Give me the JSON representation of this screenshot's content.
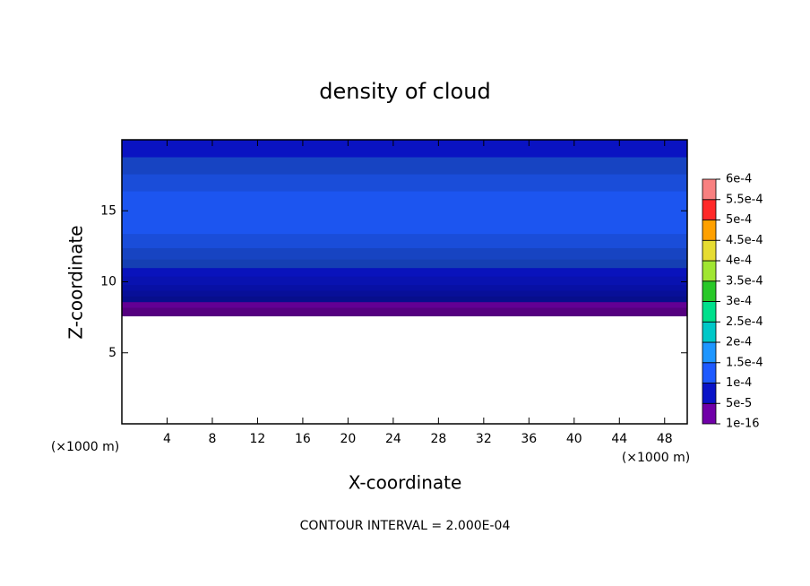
{
  "chart_data": {
    "type": "contour",
    "title": "density of cloud",
    "x_label": "X-coordinate",
    "y_label": "Z-coordinate",
    "x_unit": "(×1000 m)",
    "annotation": "CONTOUR INTERVAL = 2.000E-04",
    "xlim": [
      0,
      50
    ],
    "ylim": [
      0,
      20
    ],
    "xticks": [
      4,
      8,
      12,
      16,
      20,
      24,
      28,
      32,
      36,
      40,
      44,
      48
    ],
    "yticks": [
      5,
      10,
      15
    ],
    "z_edges": [
      7.6,
      8.2,
      8.6,
      9.0,
      9.4,
      9.8,
      10.4,
      11,
      11.6,
      12.4,
      13.4,
      16.4,
      17.6,
      18.8,
      20
    ],
    "values": [
      1e-05,
      3e-05,
      5e-05,
      6e-05,
      7e-05,
      8e-05,
      9e-05,
      0.0001,
      0.00011,
      0.000125,
      0.00014,
      0.000125,
      0.00011,
      9.5e-05
    ],
    "colorbar": {
      "levels": [
        {
          "value": 1e-16,
          "label": "1e-16"
        },
        {
          "value": 5e-05,
          "label": "5e-5"
        },
        {
          "value": 0.0001,
          "label": "1e-4"
        },
        {
          "value": 0.00015,
          "label": "1.5e-4"
        },
        {
          "value": 0.0002,
          "label": "2e-4"
        },
        {
          "value": 0.00025,
          "label": "2.5e-4"
        },
        {
          "value": 0.0003,
          "label": "3e-4"
        },
        {
          "value": 0.00035,
          "label": "3.5e-4"
        },
        {
          "value": 0.0004,
          "label": "4e-4"
        },
        {
          "value": 0.00045,
          "label": "4.5e-4"
        },
        {
          "value": 0.0005,
          "label": "5e-4"
        },
        {
          "value": 0.00055,
          "label": "5.5e-4"
        },
        {
          "value": 0.0006,
          "label": "6e-4"
        }
      ],
      "colors": [
        "#7000a8",
        "#0a14c8",
        "#1e5aff",
        "#1e96ff",
        "#00c8c8",
        "#00e08c",
        "#28c828",
        "#a0e632",
        "#e6dc32",
        "#ffa000",
        "#ff2828",
        "#f88080"
      ]
    }
  }
}
